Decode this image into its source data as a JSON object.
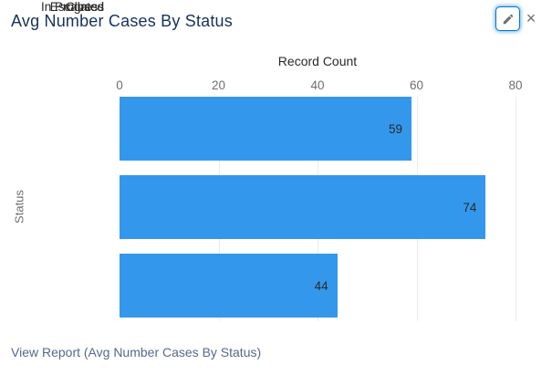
{
  "widget": {
    "title": "Avg Number Cases By Status",
    "footer_link_label": "View Report (Avg Number Cases By Status)",
    "icons": {
      "edit": "pencil-icon",
      "close_glyph": "×"
    }
  },
  "colors": {
    "widget-bg": "#FFFFFF",
    "bar-fill": "#3398EB",
    "title-text": "#16325C",
    "link-text": "#54698D",
    "grid-line": "#ECEBEA",
    "tick-text": "#706E6B",
    "chart-text": "#2B2826",
    "icon-gray": "#706E6B",
    "focus-blue": "#0176D2"
  },
  "chart_data": {
    "type": "bar",
    "orientation": "horizontal",
    "title": "Avg Number Cases By Status",
    "xlabel": "Record Count",
    "ylabel": "Status",
    "categories": [
      "Escalated",
      "Closed",
      "In Progress"
    ],
    "values": [
      59,
      74,
      44
    ],
    "xlim": [
      0,
      80
    ],
    "xticks": [
      0,
      20,
      40,
      60,
      80
    ],
    "grid": true,
    "legend": false,
    "bar_color": "#3398EB"
  }
}
